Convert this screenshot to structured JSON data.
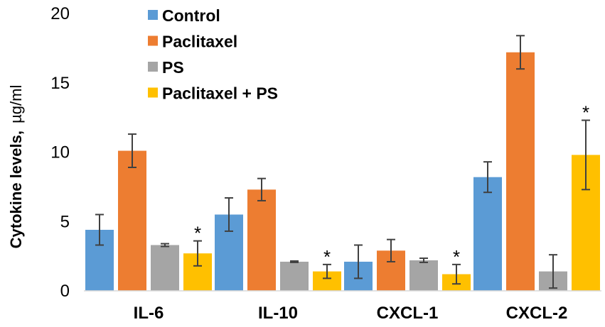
{
  "chart_data": {
    "type": "bar",
    "title": "",
    "xlabel": "",
    "ylabel": "Cytokine levels,",
    "ylabel_unit": "µg/ml",
    "ylim": [
      0,
      20
    ],
    "yticks": [
      0,
      5,
      10,
      15,
      20
    ],
    "categories": [
      "IL-6",
      "IL-10",
      "CXCL-1",
      "CXCL-2"
    ],
    "series": [
      {
        "name": "Control",
        "color": "#5b9bd5",
        "values": [
          4.4,
          5.5,
          2.1,
          8.2
        ],
        "errors": [
          1.1,
          1.2,
          1.2,
          1.1
        ]
      },
      {
        "name": "Paclitaxel",
        "color": "#ed7d31",
        "values": [
          10.1,
          7.3,
          2.9,
          17.2
        ],
        "errors": [
          1.2,
          0.8,
          0.8,
          1.2
        ]
      },
      {
        "name": "PS",
        "color": "#a5a5a5",
        "values": [
          3.3,
          2.1,
          2.2,
          1.4
        ],
        "errors": [
          0.1,
          0.05,
          0.15,
          1.2
        ]
      },
      {
        "name": "Paclitaxel + PS",
        "color": "#ffc000",
        "values": [
          2.7,
          1.4,
          1.2,
          9.8
        ],
        "errors": [
          0.9,
          0.5,
          0.7,
          2.5
        ]
      }
    ],
    "annotations": [
      {
        "series": 3,
        "category": 0,
        "text": "*"
      },
      {
        "series": 3,
        "category": 1,
        "text": "*"
      },
      {
        "series": 3,
        "category": 2,
        "text": "*"
      },
      {
        "series": 3,
        "category": 3,
        "text": "*"
      }
    ],
    "legend_position": "top-left",
    "grid": false
  }
}
